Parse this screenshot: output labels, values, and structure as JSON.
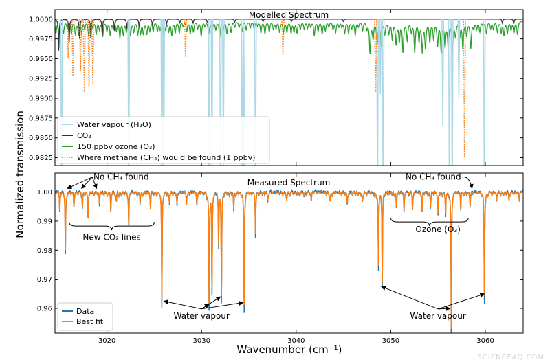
{
  "figure": {
    "ylabel": "Normalized transmission",
    "xlabel": "Wavenumber (cm⁻¹)",
    "watermark": "SCIENCEAQ.COM"
  },
  "chart_data": [
    {
      "type": "line",
      "title": "Modelled Spectrum",
      "xlim": [
        3014.5,
        3064
      ],
      "ylim": [
        0.9815,
        1.0012
      ],
      "yticks": [
        1.0,
        0.9975,
        0.995,
        0.9925,
        0.99,
        0.9875,
        0.985,
        0.9825
      ],
      "ytick_labels": [
        "1.0000",
        "0.9975",
        "0.9950",
        "0.9925",
        "0.9900",
        "0.9875",
        "0.9850",
        "0.9825"
      ],
      "grid": false,
      "legend_position": "lower-left",
      "series": [
        {
          "name": "Water vapour (H₂O)",
          "color": "#add8e6",
          "style": "solid",
          "lines": [
            {
              "x": 3015.2,
              "depth": 0.025
            },
            {
              "x": 3022.3,
              "depth": 0.025
            },
            {
              "x": 3025.8,
              "depth": 0.025
            },
            {
              "x": 3026.0,
              "depth": 0.02
            },
            {
              "x": 3030.8,
              "depth": 0.025
            },
            {
              "x": 3031.1,
              "depth": 0.02
            },
            {
              "x": 3032.0,
              "depth": 0.025
            },
            {
              "x": 3032.3,
              "depth": 0.02
            },
            {
              "x": 3034.3,
              "depth": 0.025
            },
            {
              "x": 3034.5,
              "depth": 0.02
            },
            {
              "x": 3035.7,
              "depth": 0.025
            },
            {
              "x": 3048.6,
              "depth": 0.025
            },
            {
              "x": 3048.9,
              "depth": 0.0095
            },
            {
              "x": 3049.2,
              "depth": 0.025
            },
            {
              "x": 3055.5,
              "depth": 0.0135
            },
            {
              "x": 3056.2,
              "depth": 0.025
            },
            {
              "x": 3056.5,
              "depth": 0.025
            },
            {
              "x": 3057.2,
              "depth": 0.01
            },
            {
              "x": 3059.9,
              "depth": 0.025
            }
          ]
        },
        {
          "name": "CO₂",
          "color": "#333333",
          "style": "solid",
          "lines": [
            {
              "x": 3014.9,
              "depth": 0.004
            },
            {
              "x": 3016.0,
              "depth": 0.003
            },
            {
              "x": 3017.1,
              "depth": 0.0025
            },
            {
              "x": 3018.3,
              "depth": 0.0025
            },
            {
              "x": 3019.5,
              "depth": 0.002
            },
            {
              "x": 3020.8,
              "depth": 0.0015
            },
            {
              "x": 3022.1,
              "depth": 0.0012
            },
            {
              "x": 3023.4,
              "depth": 0.001
            },
            {
              "x": 3024.8,
              "depth": 0.0008
            },
            {
              "x": 3026.3,
              "depth": 0.0006
            },
            {
              "x": 3027.7,
              "depth": 0.0005
            },
            {
              "x": 3029.1,
              "depth": 0.0005
            },
            {
              "x": 3030.6,
              "depth": 0.0004
            },
            {
              "x": 3033.5,
              "depth": 0.0004
            },
            {
              "x": 3036.5,
              "depth": 0.0003
            },
            {
              "x": 3039.5,
              "depth": 0.0003
            },
            {
              "x": 3045.0,
              "depth": 0.0003
            },
            {
              "x": 3061.8,
              "depth": 0.0005
            },
            {
              "x": 3063.0,
              "depth": 0.0006
            }
          ]
        },
        {
          "name": "150 ppbv ozone (O₃)",
          "color": "#2ca02c",
          "style": "solid",
          "lines": []
        },
        {
          "name": "Where methane (CH₄) would be found (1 ppbv)",
          "color": "#ff7f0e",
          "style": "dotted",
          "lines": [
            {
              "x": 3015.9,
              "depth": 0.005
            },
            {
              "x": 3016.4,
              "depth": 0.0072
            },
            {
              "x": 3017.2,
              "depth": 0.0065
            },
            {
              "x": 3017.6,
              "depth": 0.0092
            },
            {
              "x": 3018.1,
              "depth": 0.0085
            },
            {
              "x": 3018.5,
              "depth": 0.0083
            },
            {
              "x": 3028.3,
              "depth": 0.0048
            },
            {
              "x": 3038.6,
              "depth": 0.0045
            },
            {
              "x": 3048.4,
              "depth": 0.0092
            },
            {
              "x": 3057.8,
              "depth": 0.0175
            }
          ]
        }
      ]
    },
    {
      "type": "line",
      "title": "Measured Spectrum",
      "xlim": [
        3014.5,
        3064
      ],
      "ylim": [
        0.9515,
        1.0065
      ],
      "xticks": [
        3020,
        3030,
        3040,
        3050,
        3060
      ],
      "yticks": [
        1.0,
        0.99,
        0.98,
        0.97,
        0.96
      ],
      "ytick_labels": [
        "1.00",
        "0.99",
        "0.98",
        "0.97",
        "0.96"
      ],
      "grid": false,
      "legend_position": "lower-left",
      "series": [
        {
          "name": "Data",
          "color": "#1f77b4"
        },
        {
          "name": "Best fit",
          "color": "#ff7f0e"
        }
      ],
      "absorption_lines": [
        {
          "x": 3015.0,
          "depth": 0.006
        },
        {
          "x": 3015.6,
          "depth": 0.02
        },
        {
          "x": 3016.5,
          "depth": 0.004
        },
        {
          "x": 3017.4,
          "depth": 0.005
        },
        {
          "x": 3018.0,
          "depth": 0.009
        },
        {
          "x": 3019.2,
          "depth": 0.004
        },
        {
          "x": 3020.4,
          "depth": 0.006
        },
        {
          "x": 3021.0,
          "depth": 0.003
        },
        {
          "x": 3022.3,
          "depth": 0.011
        },
        {
          "x": 3023.5,
          "depth": 0.003
        },
        {
          "x": 3024.6,
          "depth": 0.005
        },
        {
          "x": 3025.8,
          "depth": 0.038
        },
        {
          "x": 3026.6,
          "depth": 0.004
        },
        {
          "x": 3027.4,
          "depth": 0.004
        },
        {
          "x": 3028.4,
          "depth": 0.004
        },
        {
          "x": 3029.5,
          "depth": 0.004
        },
        {
          "x": 3030.8,
          "depth": 0.041
        },
        {
          "x": 3031.1,
          "depth": 0.033
        },
        {
          "x": 3031.8,
          "depth": 0.018
        },
        {
          "x": 3032.1,
          "depth": 0.036
        },
        {
          "x": 3033.4,
          "depth": 0.006
        },
        {
          "x": 3034.5,
          "depth": 0.039
        },
        {
          "x": 3035.7,
          "depth": 0.014
        },
        {
          "x": 3037.0,
          "depth": 0.003
        },
        {
          "x": 3039.0,
          "depth": 0.003
        },
        {
          "x": 3041.6,
          "depth": 0.003
        },
        {
          "x": 3043.6,
          "depth": 0.003
        },
        {
          "x": 3045.4,
          "depth": 0.004
        },
        {
          "x": 3047.0,
          "depth": 0.003
        },
        {
          "x": 3048.7,
          "depth": 0.025
        },
        {
          "x": 3049.1,
          "depth": 0.031
        },
        {
          "x": 3050.6,
          "depth": 0.005
        },
        {
          "x": 3051.4,
          "depth": 0.006
        },
        {
          "x": 3052.3,
          "depth": 0.006
        },
        {
          "x": 3053.3,
          "depth": 0.007
        },
        {
          "x": 3054.2,
          "depth": 0.005
        },
        {
          "x": 3055.0,
          "depth": 0.007
        },
        {
          "x": 3055.8,
          "depth": 0.008
        },
        {
          "x": 3056.4,
          "depth": 0.048
        },
        {
          "x": 3057.4,
          "depth": 0.006
        },
        {
          "x": 3058.4,
          "depth": 0.004
        },
        {
          "x": 3059.9,
          "depth": 0.036
        },
        {
          "x": 3061.2,
          "depth": 0.003
        },
        {
          "x": 3062.5,
          "depth": 0.003
        },
        {
          "x": 3063.6,
          "depth": 0.002
        }
      ],
      "annotations": [
        {
          "id": "no-ch4-left",
          "text": "No CH₄ found",
          "x": 3021.5,
          "y": 1.0042
        },
        {
          "id": "new-co2",
          "text": "New CO₂ lines",
          "x": 3020.5,
          "y": 0.9835
        },
        {
          "id": "water-left",
          "text": "Water vapour",
          "x": 3030.0,
          "y": 0.9565
        },
        {
          "id": "no-ch4-right",
          "text": "No CH₄ found",
          "x": 3054.5,
          "y": 1.0042
        },
        {
          "id": "ozone",
          "text": "Ozone (O₃)",
          "x": 3055.0,
          "y": 0.9862
        },
        {
          "id": "water-right",
          "text": "Water vapour",
          "x": 3055.0,
          "y": 0.9565
        }
      ]
    }
  ]
}
